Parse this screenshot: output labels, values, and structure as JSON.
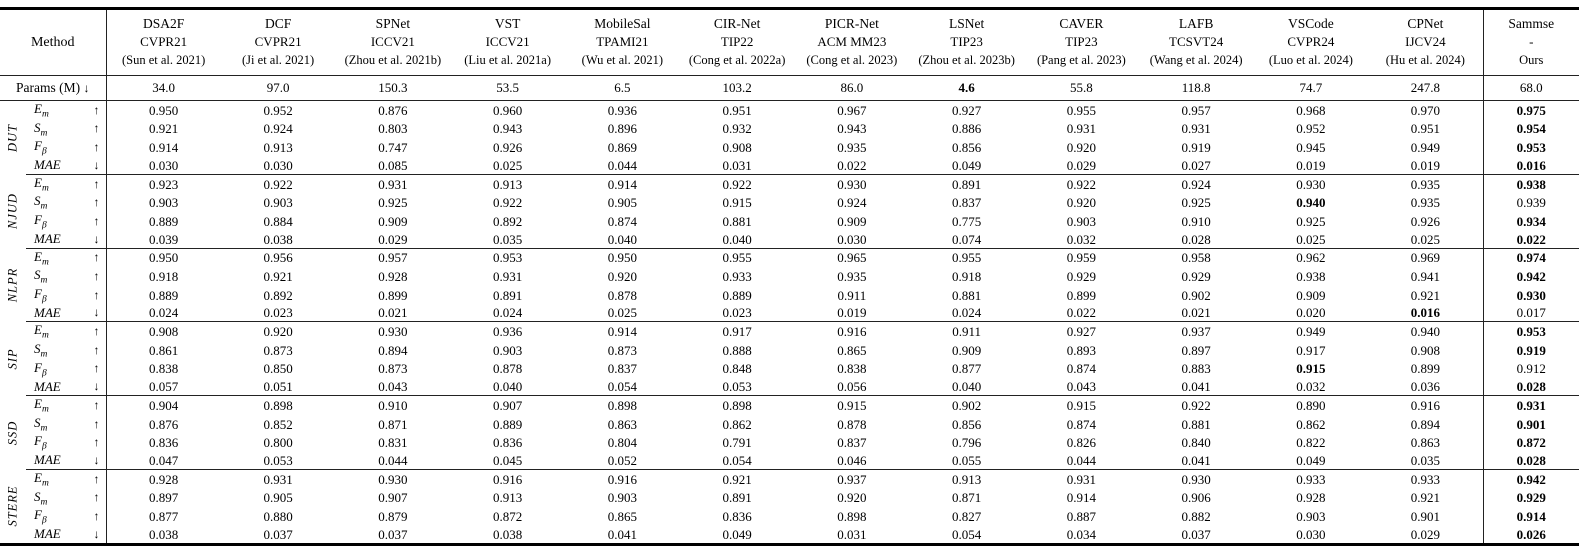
{
  "table": {
    "method_label": "Method",
    "params_row": {
      "label": "Params (M)",
      "arrow": "↓",
      "values": [
        "34.0",
        "97.0",
        "150.3",
        "53.5",
        "6.5",
        "103.2",
        "86.0",
        "4.6",
        "55.8",
        "118.8",
        "74.7",
        "247.8",
        "68.0"
      ],
      "bold": [
        7
      ]
    },
    "columns": [
      {
        "name": "DSA2F",
        "venue": "CVPR21",
        "cite": "(Sun et al. 2021)"
      },
      {
        "name": "DCF",
        "venue": "CVPR21",
        "cite": "(Ji et al. 2021)"
      },
      {
        "name": "SPNet",
        "venue": "ICCV21",
        "cite": "(Zhou et al. 2021b)"
      },
      {
        "name": "VST",
        "venue": "ICCV21",
        "cite": "(Liu et al. 2021a)"
      },
      {
        "name": "MobileSal",
        "venue": "TPAMI21",
        "cite": "(Wu et al. 2021)"
      },
      {
        "name": "CIR-Net",
        "venue": "TIP22",
        "cite": "(Cong et al. 2022a)"
      },
      {
        "name": "PICR-Net",
        "venue": "ACM MM23",
        "cite": "(Cong et al. 2023)"
      },
      {
        "name": "LSNet",
        "venue": "TIP23",
        "cite": "(Zhou et al. 2023b)"
      },
      {
        "name": "CAVER",
        "venue": "TIP23",
        "cite": "(Pang et al. 2023)"
      },
      {
        "name": "LAFB",
        "venue": "TCSVT24",
        "cite": "(Wang et al. 2024)"
      },
      {
        "name": "VSCode",
        "venue": "CVPR24",
        "cite": "(Luo et al. 2024)"
      },
      {
        "name": "CPNet",
        "venue": "IJCV24",
        "cite": "(Hu et al. 2024)"
      },
      {
        "name": "Sammse",
        "venue": "-",
        "cite": "Ours"
      }
    ],
    "groups": [
      {
        "dataset": "DUT",
        "rows": [
          {
            "metric": "E",
            "sub": "m",
            "arrow": "↑",
            "values": [
              "0.950",
              "0.952",
              "0.876",
              "0.960",
              "0.936",
              "0.951",
              "0.967",
              "0.927",
              "0.955",
              "0.957",
              "0.968",
              "0.970",
              "0.975"
            ],
            "bold": [
              12
            ]
          },
          {
            "metric": "S",
            "sub": "m",
            "arrow": "↑",
            "values": [
              "0.921",
              "0.924",
              "0.803",
              "0.943",
              "0.896",
              "0.932",
              "0.943",
              "0.886",
              "0.931",
              "0.931",
              "0.952",
              "0.951",
              "0.954"
            ],
            "bold": [
              12
            ]
          },
          {
            "metric": "F",
            "sub": "β",
            "arrow": "↑",
            "values": [
              "0.914",
              "0.913",
              "0.747",
              "0.926",
              "0.869",
              "0.908",
              "0.935",
              "0.856",
              "0.920",
              "0.919",
              "0.945",
              "0.949",
              "0.953"
            ],
            "bold": [
              12
            ]
          },
          {
            "metric": "MAE",
            "sub": "",
            "arrow": "↓",
            "values": [
              "0.030",
              "0.030",
              "0.085",
              "0.025",
              "0.044",
              "0.031",
              "0.022",
              "0.049",
              "0.029",
              "0.027",
              "0.019",
              "0.019",
              "0.016"
            ],
            "bold": [
              12
            ]
          }
        ]
      },
      {
        "dataset": "NJUD",
        "rows": [
          {
            "metric": "E",
            "sub": "m",
            "arrow": "↑",
            "values": [
              "0.923",
              "0.922",
              "0.931",
              "0.913",
              "0.914",
              "0.922",
              "0.930",
              "0.891",
              "0.922",
              "0.924",
              "0.930",
              "0.935",
              "0.938"
            ],
            "bold": [
              12
            ]
          },
          {
            "metric": "S",
            "sub": "m",
            "arrow": "↑",
            "values": [
              "0.903",
              "0.903",
              "0.925",
              "0.922",
              "0.905",
              "0.915",
              "0.924",
              "0.837",
              "0.920",
              "0.925",
              "0.940",
              "0.935",
              "0.939"
            ],
            "bold": [
              10
            ]
          },
          {
            "metric": "F",
            "sub": "β",
            "arrow": "↑",
            "values": [
              "0.889",
              "0.884",
              "0.909",
              "0.892",
              "0.874",
              "0.881",
              "0.909",
              "0.775",
              "0.903",
              "0.910",
              "0.925",
              "0.926",
              "0.934"
            ],
            "bold": [
              12
            ]
          },
          {
            "metric": "MAE",
            "sub": "",
            "arrow": "↓",
            "values": [
              "0.039",
              "0.038",
              "0.029",
              "0.035",
              "0.040",
              "0.040",
              "0.030",
              "0.074",
              "0.032",
              "0.028",
              "0.025",
              "0.025",
              "0.022"
            ],
            "bold": [
              12
            ]
          }
        ]
      },
      {
        "dataset": "NLPR",
        "rows": [
          {
            "metric": "E",
            "sub": "m",
            "arrow": "↑",
            "values": [
              "0.950",
              "0.956",
              "0.957",
              "0.953",
              "0.950",
              "0.955",
              "0.965",
              "0.955",
              "0.959",
              "0.958",
              "0.962",
              "0.969",
              "0.974"
            ],
            "bold": [
              12
            ]
          },
          {
            "metric": "S",
            "sub": "m",
            "arrow": "↑",
            "values": [
              "0.918",
              "0.921",
              "0.928",
              "0.931",
              "0.920",
              "0.933",
              "0.935",
              "0.918",
              "0.929",
              "0.929",
              "0.938",
              "0.941",
              "0.942"
            ],
            "bold": [
              12
            ]
          },
          {
            "metric": "F",
            "sub": "β",
            "arrow": "↑",
            "values": [
              "0.889",
              "0.892",
              "0.899",
              "0.891",
              "0.878",
              "0.889",
              "0.911",
              "0.881",
              "0.899",
              "0.902",
              "0.909",
              "0.921",
              "0.930"
            ],
            "bold": [
              12
            ]
          },
          {
            "metric": "MAE",
            "sub": "",
            "arrow": "↓",
            "values": [
              "0.024",
              "0.023",
              "0.021",
              "0.024",
              "0.025",
              "0.023",
              "0.019",
              "0.024",
              "0.022",
              "0.021",
              "0.020",
              "0.016",
              "0.017"
            ],
            "bold": [
              11
            ]
          }
        ]
      },
      {
        "dataset": "SIP",
        "rows": [
          {
            "metric": "E",
            "sub": "m",
            "arrow": "↑",
            "values": [
              "0.908",
              "0.920",
              "0.930",
              "0.936",
              "0.914",
              "0.917",
              "0.916",
              "0.911",
              "0.927",
              "0.937",
              "0.949",
              "0.940",
              "0.953"
            ],
            "bold": [
              12
            ]
          },
          {
            "metric": "S",
            "sub": "m",
            "arrow": "↑",
            "values": [
              "0.861",
              "0.873",
              "0.894",
              "0.903",
              "0.873",
              "0.888",
              "0.865",
              "0.909",
              "0.893",
              "0.897",
              "0.917",
              "0.908",
              "0.919"
            ],
            "bold": [
              12
            ]
          },
          {
            "metric": "F",
            "sub": "β",
            "arrow": "↑",
            "values": [
              "0.838",
              "0.850",
              "0.873",
              "0.878",
              "0.837",
              "0.848",
              "0.838",
              "0.877",
              "0.874",
              "0.883",
              "0.915",
              "0.899",
              "0.912"
            ],
            "bold": [
              10
            ]
          },
          {
            "metric": "MAE",
            "sub": "",
            "arrow": "↓",
            "values": [
              "0.057",
              "0.051",
              "0.043",
              "0.040",
              "0.054",
              "0.053",
              "0.056",
              "0.040",
              "0.043",
              "0.041",
              "0.032",
              "0.036",
              "0.028"
            ],
            "bold": [
              12
            ]
          }
        ]
      },
      {
        "dataset": "SSD",
        "rows": [
          {
            "metric": "E",
            "sub": "m",
            "arrow": "↑",
            "values": [
              "0.904",
              "0.898",
              "0.910",
              "0.907",
              "0.898",
              "0.898",
              "0.915",
              "0.902",
              "0.915",
              "0.922",
              "0.890",
              "0.916",
              "0.931"
            ],
            "bold": [
              12
            ]
          },
          {
            "metric": "S",
            "sub": "m",
            "arrow": "↑",
            "values": [
              "0.876",
              "0.852",
              "0.871",
              "0.889",
              "0.863",
              "0.862",
              "0.878",
              "0.856",
              "0.874",
              "0.881",
              "0.862",
              "0.894",
              "0.901"
            ],
            "bold": [
              12
            ]
          },
          {
            "metric": "F",
            "sub": "β",
            "arrow": "↑",
            "values": [
              "0.836",
              "0.800",
              "0.831",
              "0.836",
              "0.804",
              "0.791",
              "0.837",
              "0.796",
              "0.826",
              "0.840",
              "0.822",
              "0.863",
              "0.872"
            ],
            "bold": [
              12
            ]
          },
          {
            "metric": "MAE",
            "sub": "",
            "arrow": "↓",
            "values": [
              "0.047",
              "0.053",
              "0.044",
              "0.045",
              "0.052",
              "0.054",
              "0.046",
              "0.055",
              "0.044",
              "0.041",
              "0.049",
              "0.035",
              "0.028"
            ],
            "bold": [
              12
            ]
          }
        ]
      },
      {
        "dataset": "STERE",
        "rows": [
          {
            "metric": "E",
            "sub": "m",
            "arrow": "↑",
            "values": [
              "0.928",
              "0.931",
              "0.930",
              "0.916",
              "0.916",
              "0.921",
              "0.937",
              "0.913",
              "0.931",
              "0.930",
              "0.933",
              "0.933",
              "0.942"
            ],
            "bold": [
              12
            ]
          },
          {
            "metric": "S",
            "sub": "m",
            "arrow": "↑",
            "values": [
              "0.897",
              "0.905",
              "0.907",
              "0.913",
              "0.903",
              "0.891",
              "0.920",
              "0.871",
              "0.914",
              "0.906",
              "0.928",
              "0.921",
              "0.929"
            ],
            "bold": [
              12
            ]
          },
          {
            "metric": "F",
            "sub": "β",
            "arrow": "↑",
            "values": [
              "0.877",
              "0.880",
              "0.879",
              "0.872",
              "0.865",
              "0.836",
              "0.898",
              "0.827",
              "0.887",
              "0.882",
              "0.903",
              "0.901",
              "0.914"
            ],
            "bold": [
              12
            ]
          },
          {
            "metric": "MAE",
            "sub": "",
            "arrow": "↓",
            "values": [
              "0.038",
              "0.037",
              "0.037",
              "0.038",
              "0.041",
              "0.049",
              "0.031",
              "0.054",
              "0.034",
              "0.037",
              "0.030",
              "0.029",
              "0.026"
            ],
            "bold": [
              12
            ]
          }
        ]
      }
    ]
  }
}
